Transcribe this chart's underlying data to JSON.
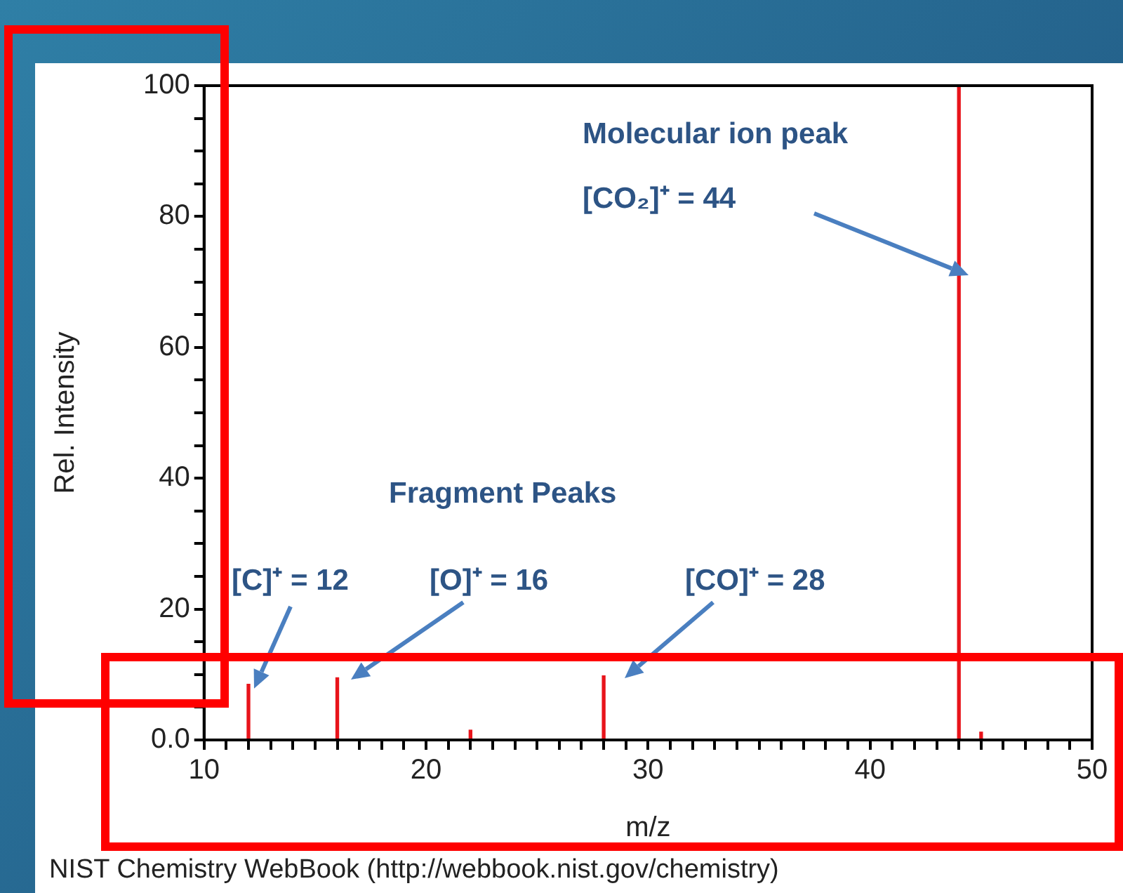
{
  "chart_data": {
    "type": "bar",
    "xlabel": "m/z",
    "ylabel": "Rel. Intensity",
    "x": [
      12,
      16,
      22,
      28,
      44,
      45
    ],
    "series": [
      {
        "color": "#e8141b",
        "values": [
          8.5,
          9.5,
          1.5,
          9.8,
          100,
          1.2
        ]
      }
    ],
    "xlim": [
      10,
      50
    ],
    "xticks": [
      10,
      {
        "value": 11,
        "label": null
      },
      {
        "value": 12,
        "label": null
      },
      {
        "value": 13,
        "label": null
      },
      {
        "value": 14,
        "label": null
      },
      {
        "value": 15,
        "label": null
      },
      {
        "value": 16,
        "label": null
      },
      {
        "value": 17,
        "label": null
      },
      {
        "value": 18,
        "label": null
      },
      {
        "value": 19,
        "label": null
      },
      20,
      {
        "value": 21,
        "label": null
      },
      {
        "value": 22,
        "label": null
      },
      {
        "value": 23,
        "label": null
      },
      {
        "value": 24,
        "label": null
      },
      {
        "value": 25,
        "label": null
      },
      {
        "value": 26,
        "label": null
      },
      {
        "value": 27,
        "label": null
      },
      {
        "value": 28,
        "label": null
      },
      {
        "value": 29,
        "label": null
      },
      30,
      {
        "value": 31,
        "label": null
      },
      {
        "value": 32,
        "label": null
      },
      {
        "value": 33,
        "label": null
      },
      {
        "value": 34,
        "label": null
      },
      {
        "value": 35,
        "label": null
      },
      {
        "value": 36,
        "label": null
      },
      {
        "value": 37,
        "label": null
      },
      {
        "value": 38,
        "label": null
      },
      {
        "value": 39,
        "label": null
      },
      40,
      {
        "value": 41,
        "label": null
      },
      {
        "value": 42,
        "label": null
      },
      {
        "value": 43,
        "label": null
      },
      {
        "value": 44,
        "label": null
      },
      {
        "value": 45,
        "label": null
      },
      {
        "value": 46,
        "label": null
      },
      {
        "value": 47,
        "label": null
      },
      {
        "value": 48,
        "label": null
      },
      {
        "value": 49,
        "label": null
      },
      50
    ],
    "ylim": [
      0,
      100
    ],
    "yticks": [
      {
        "value": 0,
        "label": "0.0"
      },
      {
        "value": 5,
        "label": null
      },
      {
        "value": 10,
        "label": null
      },
      {
        "value": 15,
        "label": null
      },
      20,
      {
        "value": 25,
        "label": null
      },
      {
        "value": 30,
        "label": null
      },
      {
        "value": 35,
        "label": null
      },
      40,
      {
        "value": 45,
        "label": null
      },
      {
        "value": 50,
        "label": null
      },
      {
        "value": 55,
        "label": null
      },
      60,
      {
        "value": 65,
        "label": null
      },
      {
        "value": 70,
        "label": null
      },
      {
        "value": 75,
        "label": null
      },
      80,
      {
        "value": 85,
        "label": null
      },
      {
        "value": 90,
        "label": null
      },
      {
        "value": 95,
        "label": null
      },
      100
    ],
    "annotations": [
      "Molecular ion peak",
      "[CO₂]⁺ = 44",
      "Fragment Peaks",
      {
        "text": "[C]⁺ = 12",
        "x": 12,
        "y": 8.5
      },
      "[O]⁺ = 16",
      "[CO]⁺ = 28",
      "NIST Chemistry WebBook (http://webbook.nist.gov/chemistry)"
    ]
  }
}
